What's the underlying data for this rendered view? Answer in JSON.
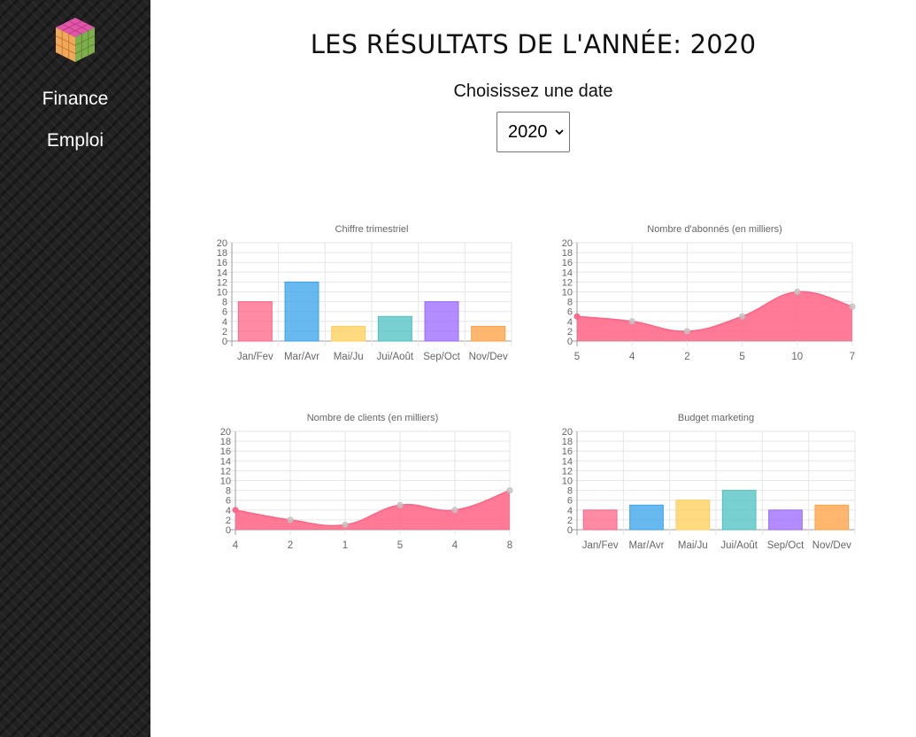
{
  "sidebar": {
    "items": [
      {
        "label": "Finance"
      },
      {
        "label": "Emploi"
      }
    ]
  },
  "main": {
    "title": "LES RÉSULTATS DE L'ANNÉE: 2020",
    "date_label": "Choisissez une date",
    "year_select": {
      "value": "2020"
    }
  },
  "colors": {
    "pink": "#ff6384",
    "blue": "#36a2eb",
    "yellow": "#ffcd56",
    "teal": "#4bc0c0",
    "purple": "#9966ff",
    "orange": "#ff9f40"
  },
  "chart_data": [
    {
      "type": "bar",
      "title": "Chiffre trimestriel",
      "categories": [
        "Jan/Fev",
        "Mar/Avr",
        "Mai/Ju",
        "Jui/Août",
        "Sep/Oct",
        "Nov/Dev"
      ],
      "values": [
        8,
        12,
        3,
        5,
        8,
        3
      ],
      "ylim": [
        0,
        20
      ],
      "yticks": [
        0,
        2,
        4,
        6,
        8,
        10,
        12,
        14,
        16,
        18,
        20
      ],
      "grid": true
    },
    {
      "type": "area",
      "title": "Nombre d'abonnés (en milliers)",
      "categories": [
        "5",
        "4",
        "2",
        "5",
        "10",
        "7"
      ],
      "values": [
        5,
        4,
        2,
        5,
        10,
        7
      ],
      "ylim": [
        0,
        20
      ],
      "yticks": [
        0,
        2,
        4,
        6,
        8,
        10,
        12,
        14,
        16,
        18,
        20
      ],
      "grid": true
    },
    {
      "type": "area",
      "title": "Nombre de clients (en milliers)",
      "categories": [
        "4",
        "2",
        "1",
        "5",
        "4",
        "8"
      ],
      "values": [
        4,
        2,
        1,
        5,
        4,
        8
      ],
      "ylim": [
        0,
        20
      ],
      "yticks": [
        0,
        2,
        4,
        6,
        8,
        10,
        12,
        14,
        16,
        18,
        20
      ],
      "grid": true
    },
    {
      "type": "bar",
      "title": "Budget marketing",
      "categories": [
        "Jan/Fev",
        "Mar/Avr",
        "Mai/Ju",
        "Jui/Août",
        "Sep/Oct",
        "Nov/Dev"
      ],
      "values": [
        4,
        5,
        6,
        8,
        4,
        5
      ],
      "ylim": [
        0,
        20
      ],
      "yticks": [
        0,
        2,
        4,
        6,
        8,
        10,
        12,
        14,
        16,
        18,
        20
      ],
      "grid": true
    }
  ]
}
